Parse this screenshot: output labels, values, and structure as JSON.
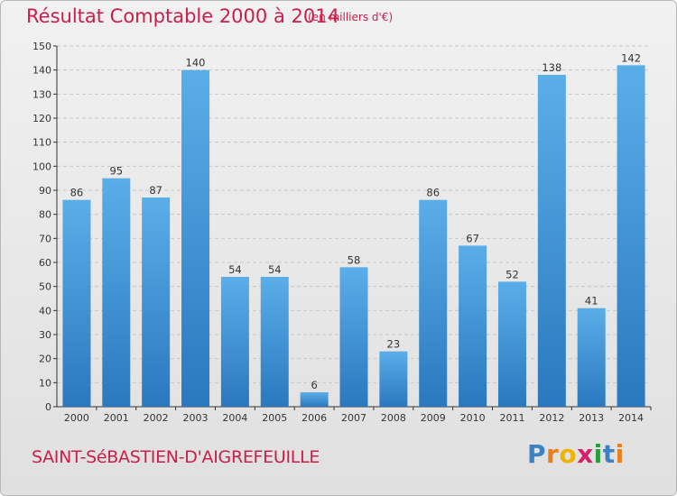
{
  "title": "Résultat Comptable 2000 à 2014",
  "subtitle": "(en milliers d'€)",
  "commune": "SAINT-SéBASTIEN-D'AIGREFEUILLE",
  "logo": {
    "letters": [
      "P",
      "r",
      "o",
      "x",
      "i",
      "t",
      "i"
    ],
    "colors": [
      "#3b82c4",
      "#e8801e",
      "#f0b400",
      "#d8206a",
      "#2a9d3a",
      "#3b82c4",
      "#e8801e"
    ]
  },
  "colors": {
    "title": "#c8204a",
    "bar_light": "#5aaee8",
    "bar_dark": "#2a78bf",
    "grid": "#c8c8c8",
    "axis": "#333333"
  },
  "chart_data": {
    "type": "bar",
    "categories": [
      "2000",
      "2001",
      "2002",
      "2003",
      "2004",
      "2005",
      "2006",
      "2007",
      "2008",
      "2009",
      "2010",
      "2011",
      "2012",
      "2013",
      "2014"
    ],
    "values": [
      86,
      95,
      87,
      140,
      54,
      54,
      6,
      58,
      23,
      86,
      67,
      52,
      138,
      41,
      142
    ],
    "ylim": [
      0,
      150
    ],
    "yticks": [
      0,
      10,
      20,
      30,
      40,
      50,
      60,
      70,
      80,
      90,
      100,
      110,
      120,
      130,
      140,
      150
    ],
    "grid": true,
    "data_labels": true
  }
}
